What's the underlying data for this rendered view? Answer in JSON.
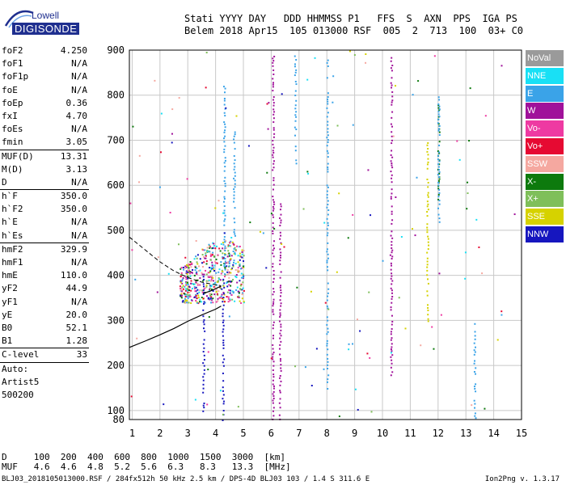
{
  "logo": {
    "brand": "Lowell",
    "name": "DIGISONDE"
  },
  "header": {
    "line1": "Stati YYYY DAY   DDD HHMMSS P1   FFS  S  AXN  PPS  IGA PS",
    "line2": "Belem 2018 Apr15  105 013000 RSF  005  2  713  100  03+ C0"
  },
  "params": [
    {
      "label": "foF2",
      "value": "4.250"
    },
    {
      "label": "foF1",
      "value": "N/A"
    },
    {
      "label": "foF1p",
      "value": "N/A"
    },
    {
      "label": "foE",
      "value": "N/A"
    },
    {
      "label": "foEp",
      "value": "0.36"
    },
    {
      "label": "fxI",
      "value": "4.70"
    },
    {
      "label": "foEs",
      "value": "N/A"
    },
    {
      "label": "fmin",
      "value": "3.05",
      "sep": true
    },
    {
      "label": "MUF(D)",
      "value": "13.31"
    },
    {
      "label": "M(D)",
      "value": "3.13"
    },
    {
      "label": "D",
      "value": "N/A",
      "sep": true
    },
    {
      "label": "h`F",
      "value": "350.0"
    },
    {
      "label": "h`F2",
      "value": "350.0"
    },
    {
      "label": "h`E",
      "value": "N/A"
    },
    {
      "label": "h`Es",
      "value": "N/A",
      "sep": true
    },
    {
      "label": "hmF2",
      "value": "329.9"
    },
    {
      "label": "hmF1",
      "value": "N/A"
    },
    {
      "label": "hmE",
      "value": "110.0"
    },
    {
      "label": "yF2",
      "value": "44.9"
    },
    {
      "label": "yF1",
      "value": "N/A"
    },
    {
      "label": "yE",
      "value": "20.0"
    },
    {
      "label": "B0",
      "value": "52.1"
    },
    {
      "label": "B1",
      "value": "1.28",
      "sep": true
    },
    {
      "label": "C-level",
      "value": "33",
      "sep": true
    }
  ],
  "auto": {
    "line1": "Auto:",
    "line2": "Artist5",
    "line3": "500200"
  },
  "legend": [
    {
      "label": "NoVal",
      "color": "#9a9a9a"
    },
    {
      "label": "NNE",
      "color": "#19e0f5"
    },
    {
      "label": "E",
      "color": "#3aa3e8"
    },
    {
      "label": "W",
      "color": "#a0119a"
    },
    {
      "label": "Vo-",
      "color": "#ee3aa2"
    },
    {
      "label": "Vo+",
      "color": "#e60a32"
    },
    {
      "label": "SSW",
      "color": "#f5a8a0"
    },
    {
      "label": "X-",
      "color": "#0d7a0d"
    },
    {
      "label": "X+",
      "color": "#7fbf5a"
    },
    {
      "label": "SSE",
      "color": "#d6d200"
    },
    {
      "label": "NNW",
      "color": "#1616bf"
    }
  ],
  "table": {
    "row1": "D     100  200  400  600  800  1000  1500  3000  [km]",
    "row2": "MUF   4.6  4.6  4.8  5.2  5.6  6.3   8.3   13.3  [MHz]"
  },
  "footer": "BLJ03_2018105013000.RSF / 284fx512h 50 kHz 2.5 km / DPS-4D BLJ03 103 / 1.4 S 311.6 E",
  "version": "Ion2Png v. 1.3.17",
  "chart_data": {
    "type": "scatter",
    "xlabel": "",
    "ylabel": "",
    "xlim": [
      0.9,
      15.0
    ],
    "ylim": [
      80,
      900
    ],
    "xticks": [
      1,
      2,
      3,
      4,
      5,
      6,
      7,
      8,
      9,
      10,
      11,
      12,
      13,
      14,
      15
    ],
    "yticks": [
      80,
      100,
      200,
      300,
      400,
      500,
      600,
      700,
      800,
      900
    ],
    "grid": true,
    "profile_dashed": [
      [
        0.9,
        485
      ],
      [
        1.5,
        455
      ],
      [
        2.0,
        430
      ],
      [
        2.5,
        410
      ],
      [
        3.0,
        395
      ],
      [
        3.5,
        385
      ],
      [
        3.9,
        380
      ],
      [
        4.2,
        377
      ]
    ],
    "profile_solid": [
      [
        0.9,
        240
      ],
      [
        1.5,
        255
      ],
      [
        2.0,
        268
      ],
      [
        2.5,
        282
      ],
      [
        3.0,
        298
      ],
      [
        3.5,
        312
      ],
      [
        4.0,
        325
      ],
      [
        4.2,
        332
      ]
    ],
    "profile_cusp": [
      [
        3.55,
        360
      ],
      [
        3.8,
        365
      ],
      [
        4.05,
        372
      ],
      [
        4.2,
        376
      ]
    ],
    "traces": [
      {
        "name": "W",
        "x": 6.05,
        "y1": 82,
        "y2": 895
      },
      {
        "name": "W",
        "x": 6.3,
        "y1": 82,
        "y2": 560
      },
      {
        "name": "W",
        "x": 10.3,
        "y1": 180,
        "y2": 890
      },
      {
        "name": "NNW",
        "x": 3.55,
        "y1": 100,
        "y2": 400
      },
      {
        "name": "NNW",
        "x": 4.25,
        "y1": 80,
        "y2": 400
      },
      {
        "name": "E",
        "x": 6.85,
        "y1": 650,
        "y2": 890
      },
      {
        "name": "E",
        "x": 8.0,
        "y1": 150,
        "y2": 890
      },
      {
        "name": "E",
        "x": 13.3,
        "y1": 80,
        "y2": 300
      },
      {
        "name": "SSE",
        "x": 11.6,
        "y1": 300,
        "y2": 700
      },
      {
        "name": "X-",
        "x": 12.0,
        "y1": 570,
        "y2": 780
      },
      {
        "name": "E",
        "x": 12.0,
        "y1": 520,
        "y2": 800
      },
      {
        "name": "E",
        "x": 4.3,
        "y1": 400,
        "y2": 830
      },
      {
        "name": "E",
        "x": 4.65,
        "y1": 430,
        "y2": 720
      }
    ],
    "cluster": {
      "xmin": 2.7,
      "xmax": 5.0,
      "ymin": 340,
      "ymax": 480
    }
  }
}
